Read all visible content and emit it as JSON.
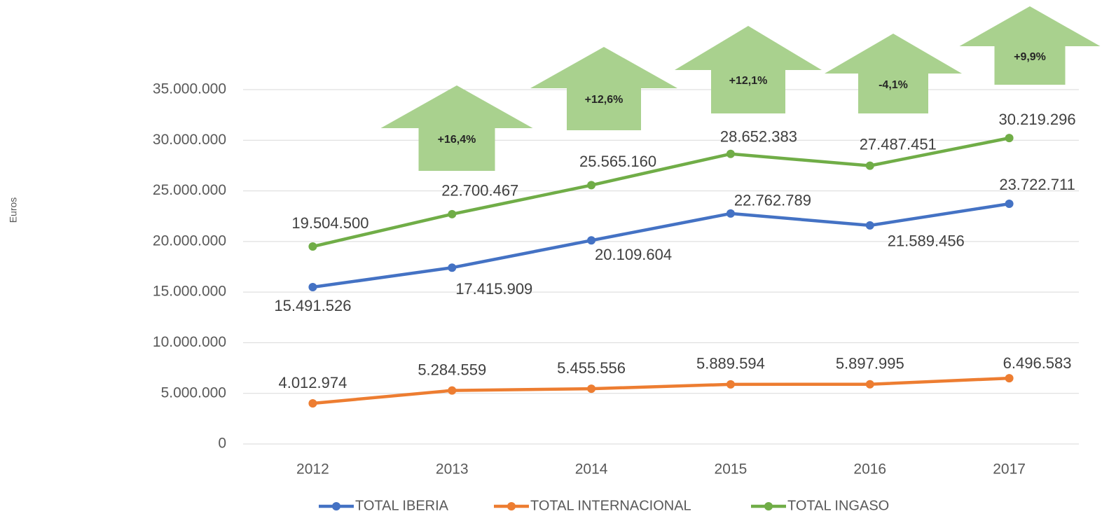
{
  "chart_data": {
    "type": "line",
    "ylabel": "Euros",
    "categories": [
      "2012",
      "2013",
      "2014",
      "2015",
      "2016",
      "2017"
    ],
    "series": [
      {
        "name": "TOTAL IBERIA",
        "color": "#4472c4",
        "values": [
          15491526,
          17415909,
          20109604,
          22762789,
          21589456,
          23722711
        ],
        "value_labels": [
          "15.491.526",
          "17.415.909",
          "20.109.604",
          "22.762.789",
          "21.589.456",
          "23.722.711"
        ]
      },
      {
        "name": "TOTAL INTERNACIONAL",
        "color": "#ed7d31",
        "values": [
          4012974,
          5284559,
          5455556,
          5889594,
          5897995,
          6496583
        ],
        "value_labels": [
          "4.012.974",
          "5.284.559",
          "5.455.556",
          "5.889.594",
          "5.897.995",
          "6.496.583"
        ]
      },
      {
        "name": "TOTAL INGASO",
        "color": "#70ad47",
        "values": [
          19504500,
          22700467,
          25565160,
          28652383,
          27487451,
          30219296
        ],
        "value_labels": [
          "19.504.500",
          "22.700.467",
          "25.565.160",
          "28.652.383",
          "27.487.451",
          "30.219.296"
        ]
      }
    ],
    "annotations": [
      "+16,4%",
      "+12,6%",
      "+12,1%",
      "-4,1%",
      "+9,9%"
    ],
    "annotation_color": "#a9d18e",
    "ylim": [
      0,
      35000000
    ],
    "yticks": [
      0,
      {
        "value": 5000000,
        "label": "5.000.000"
      },
      {
        "value": 10000000,
        "label": "10.000.000"
      },
      {
        "value": 15000000,
        "label": "15.000.000"
      },
      {
        "value": 20000000,
        "label": "20.000.000"
      },
      {
        "value": 25000000,
        "label": "25.000.000"
      },
      {
        "value": 30000000,
        "label": "30.000.000"
      },
      {
        "value": 35000000,
        "label": "35.000.000"
      }
    ],
    "grid": true,
    "legend": "bottom"
  }
}
